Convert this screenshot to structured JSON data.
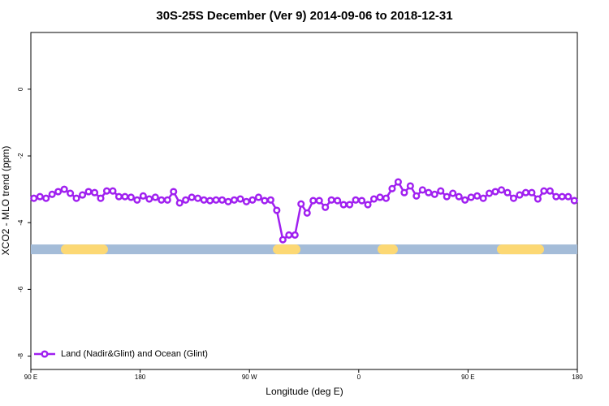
{
  "chart_data": {
    "type": "line",
    "title": "30S-25S December (Ver 9)   2014-09-06 to 2018-12-31",
    "x_label": "Longitude (deg E)",
    "y_label": "XCO2 - MLO trend (ppm)",
    "xlim": [
      90,
      540
    ],
    "xticks": [
      {
        "value": 90,
        "label": "90 E"
      },
      {
        "value": 180,
        "label": "180"
      },
      {
        "value": 270,
        "label": "90 W"
      },
      {
        "value": 360,
        "label": "0"
      },
      {
        "value": 450,
        "label": "90 E"
      },
      {
        "value": 540,
        "label": "180"
      }
    ],
    "ylim": [
      -8.4,
      1.7
    ],
    "yticks": [
      0,
      -2,
      -4,
      -6,
      -8
    ],
    "legend_position": "bottom-left",
    "x": [
      92.5,
      97.5,
      102.5,
      107.5,
      112.5,
      117.5,
      122.5,
      127.5,
      132.5,
      137.5,
      142.5,
      147.5,
      152.5,
      157.5,
      162.5,
      167.5,
      172.5,
      177.5,
      182.5,
      187.5,
      192.5,
      197.5,
      202.5,
      207.5,
      212.5,
      217.5,
      222.5,
      227.5,
      232.5,
      237.5,
      242.5,
      247.5,
      252.5,
      257.5,
      262.5,
      267.5,
      272.5,
      277.5,
      282.5,
      287.5,
      292.5,
      297.5,
      302.5,
      307.5,
      312.5,
      317.5,
      322.5,
      327.5,
      332.5,
      337.5,
      342.5,
      347.5,
      352.5,
      357.5,
      362.5,
      367.5,
      372.5,
      377.5,
      382.5,
      387.5,
      392.5,
      397.5,
      402.5,
      407.5,
      412.5,
      417.5,
      422.5,
      427.5,
      432.5,
      437.5,
      442.5,
      447.5,
      452.5,
      457.5,
      462.5,
      467.5,
      472.5,
      477.5,
      482.5,
      487.5,
      492.5,
      497.5,
      502.5,
      507.5,
      512.5,
      517.5,
      522.5,
      527.5,
      532.5,
      537.5
    ],
    "series": [
      {
        "name": "Land (Nadir&Glint) and Ocean (Glint)",
        "color": "#a020f0",
        "values": [
          -3.27,
          -3.22,
          -3.27,
          -3.15,
          -3.07,
          -3.0,
          -3.12,
          -3.27,
          -3.17,
          -3.07,
          -3.1,
          -3.27,
          -3.05,
          -3.05,
          -3.22,
          -3.22,
          -3.24,
          -3.32,
          -3.2,
          -3.29,
          -3.24,
          -3.32,
          -3.32,
          -3.07,
          -3.41,
          -3.32,
          -3.24,
          -3.27,
          -3.32,
          -3.34,
          -3.32,
          -3.32,
          -3.37,
          -3.32,
          -3.29,
          -3.37,
          -3.32,
          -3.24,
          -3.34,
          -3.32,
          -3.63,
          -4.51,
          -4.37,
          -4.37,
          -3.44,
          -3.71,
          -3.34,
          -3.34,
          -3.54,
          -3.32,
          -3.34,
          -3.46,
          -3.46,
          -3.32,
          -3.34,
          -3.46,
          -3.29,
          -3.24,
          -3.27,
          -2.98,
          -2.78,
          -3.1,
          -2.9,
          -3.2,
          -3.02,
          -3.1,
          -3.15,
          -3.05,
          -3.22,
          -3.12,
          -3.22,
          -3.32,
          -3.24,
          -3.2,
          -3.27,
          -3.12,
          -3.07,
          -3.02,
          -3.1,
          -3.27,
          -3.17,
          -3.1,
          -3.1,
          -3.29,
          -3.05,
          -3.05,
          -3.22,
          -3.22,
          -3.22,
          -3.34
        ]
      }
    ],
    "surface_band": {
      "level": -4.8,
      "ocean_color": "#a4bcd8",
      "land_color": "#fcd874",
      "land_segments": [
        [
          114.7,
          153.5
        ],
        [
          289.3,
          312.0
        ],
        [
          375.5,
          392.2
        ],
        [
          473.8,
          512.6
        ]
      ]
    }
  }
}
